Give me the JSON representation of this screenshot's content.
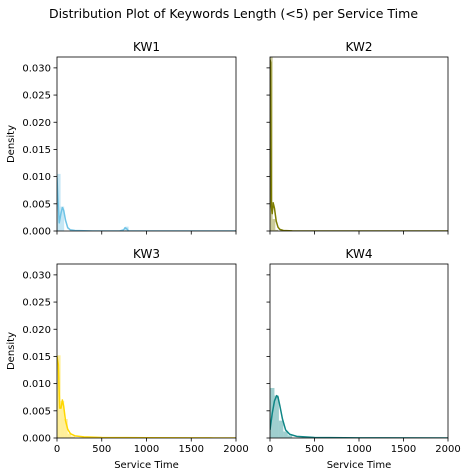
{
  "figure_title": "Distribution Plot of Keywords Length (<5) per Service Time",
  "x_label": "Service Time",
  "y_label": "Density",
  "colors": {
    "kw1": "#6ec3e6",
    "kw2": "#7d7d00",
    "kw3": "#ffd700",
    "kw4": "#0f8686",
    "fill_alpha": 0.4
  },
  "chart_data": [
    {
      "type": "area",
      "title": "KW1",
      "xlabel": "",
      "ylabel": "Density",
      "xlim": [
        0,
        2000
      ],
      "ylim": [
        0,
        0.032
      ],
      "xticks": [
        "0",
        "500",
        "1000",
        "1500",
        "2000"
      ],
      "yticks": [
        "0.000",
        "0.005",
        "0.010",
        "0.015",
        "0.020",
        "0.025",
        "0.030"
      ],
      "series": [
        {
          "color_key": "kw1",
          "histogram": {
            "bin_width": 40,
            "bins": [
              {
                "x": 0,
                "y": 0.0105
              },
              {
                "x": 40,
                "y": 0.0045
              },
              {
                "x": 760,
                "y": 0.0008
              }
            ]
          },
          "kde": {
            "x": [
              0,
              10,
              25,
              45,
              60,
              75,
              95,
              120,
              150,
              200,
              400,
              700,
              745,
              760,
              780,
              800,
              1000,
              2000
            ],
            "y": [
              0.0098,
              0.006,
              0.0015,
              0.0033,
              0.0043,
              0.0038,
              0.002,
              0.0006,
              0.0002,
              0.0001,
              0.0,
              0.0,
              0.0002,
              0.0006,
              0.0004,
              0.0,
              0.0,
              0.0
            ]
          }
        }
      ]
    },
    {
      "type": "area",
      "title": "KW2",
      "xlabel": "",
      "ylabel": "",
      "xlim": [
        0,
        2000
      ],
      "ylim": [
        0,
        0.032
      ],
      "xticks": [
        "0",
        "500",
        "1000",
        "1500",
        "2000"
      ],
      "yticks": [
        "0.000",
        "0.005",
        "0.010",
        "0.015",
        "0.020",
        "0.025",
        "0.030"
      ],
      "series": [
        {
          "color_key": "kw2",
          "histogram": {
            "bin_width": 30,
            "bins": [
              {
                "x": 0,
                "y": 0.0322
              },
              {
                "x": 30,
                "y": 0.0022
              },
              {
                "x": 60,
                "y": 0.0002
              }
            ]
          },
          "kde": {
            "x": [
              0,
              8,
              15,
              25,
              35,
              50,
              70,
              90,
              110,
              150,
              250,
              600,
              1200,
              2000
            ],
            "y": [
              0.0315,
              0.031,
              0.0045,
              0.0032,
              0.0052,
              0.0042,
              0.0018,
              0.0007,
              0.0003,
              0.0001,
              3e-05,
              0.0,
              0.0,
              0.0
            ]
          }
        }
      ]
    },
    {
      "type": "area",
      "title": "KW3",
      "xlabel": "Service Time",
      "ylabel": "Density",
      "xlim": [
        0,
        2000
      ],
      "ylim": [
        0,
        0.032
      ],
      "xticks": [
        "0",
        "500",
        "1000",
        "1500",
        "2000"
      ],
      "yticks": [
        "0.000",
        "0.005",
        "0.010",
        "0.015",
        "0.020",
        "0.025",
        "0.030"
      ],
      "series": [
        {
          "color_key": "kw3",
          "histogram": {
            "bin_width": 40,
            "bins": [
              {
                "x": 0,
                "y": 0.0152
              },
              {
                "x": 40,
                "y": 0.0068
              },
              {
                "x": 80,
                "y": 0.0035
              },
              {
                "x": 120,
                "y": 0.0008
              },
              {
                "x": 160,
                "y": 0.0003
              }
            ]
          },
          "kde": {
            "x": [
              0,
              15,
              30,
              45,
              60,
              75,
              95,
              120,
              150,
              200,
              300,
              500,
              1000,
              1500,
              1700,
              1750,
              2000
            ],
            "y": [
              0.015,
              0.0135,
              0.0055,
              0.0055,
              0.007,
              0.0058,
              0.0032,
              0.0016,
              0.0008,
              0.0004,
              0.0002,
              0.0001,
              5e-05,
              3e-05,
              2e-05,
              0.0,
              0.0
            ]
          }
        }
      ]
    },
    {
      "type": "area",
      "title": "KW4",
      "xlabel": "Service Time",
      "ylabel": "",
      "xlim": [
        0,
        2000
      ],
      "ylim": [
        0,
        0.032
      ],
      "xticks": [
        "0",
        "500",
        "1000",
        "1500",
        "2000"
      ],
      "yticks": [
        "0.000",
        "0.005",
        "0.010",
        "0.015",
        "0.020",
        "0.025",
        "0.030"
      ],
      "series": [
        {
          "color_key": "kw4",
          "histogram": {
            "bin_width": 50,
            "bins": [
              {
                "x": 0,
                "y": 0.0092
              },
              {
                "x": 50,
                "y": 0.0078
              },
              {
                "x": 100,
                "y": 0.0032
              },
              {
                "x": 150,
                "y": 0.0012
              },
              {
                "x": 200,
                "y": 0.0005
              }
            ]
          },
          "kde": {
            "x": [
              0,
              25,
              50,
              75,
              90,
              110,
              140,
              175,
              220,
              300,
              500,
              1000,
              2000
            ],
            "y": [
              0.0015,
              0.0045,
              0.0068,
              0.0078,
              0.0075,
              0.006,
              0.0035,
              0.0015,
              0.0007,
              0.0003,
              0.0001,
              2e-05,
              0.0
            ]
          }
        }
      ]
    }
  ]
}
